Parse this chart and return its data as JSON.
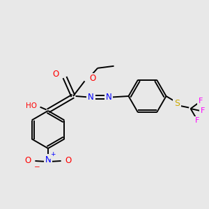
{
  "bg_color": "#e8e8e8",
  "bond_color": "#000000",
  "bond_lw": 1.4,
  "atom_colors": {
    "O": "#ff0000",
    "N": "#0000ff",
    "S": "#ccaa00",
    "F": "#ff00ff",
    "H": "#000000",
    "C": "#000000"
  },
  "font_size": 7.0
}
